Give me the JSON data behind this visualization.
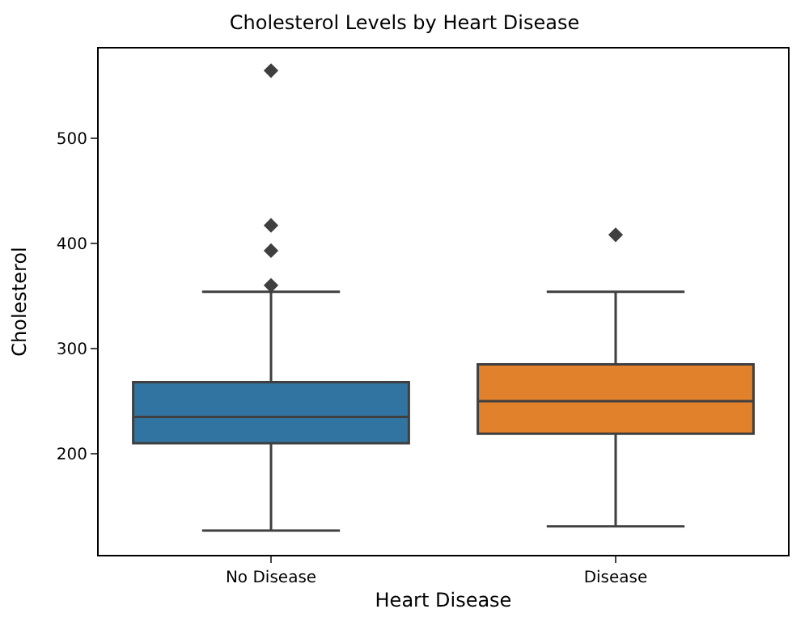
{
  "chart_data": {
    "type": "box",
    "title": "Cholesterol Levels by Heart Disease",
    "xlabel": "Heart Disease",
    "ylabel": "Cholesterol",
    "categories": [
      "No Disease",
      "Disease"
    ],
    "boxes": [
      {
        "low": 127,
        "q1": 210,
        "median": 235,
        "q3": 268,
        "high": 354,
        "outliers": [
          564,
          417,
          393,
          360
        ]
      },
      {
        "low": 131,
        "q1": 219,
        "median": 250,
        "q3": 285,
        "high": 354,
        "outliers": [
          408
        ]
      }
    ],
    "colors": [
      "#3274a1",
      "#e1812c"
    ],
    "ylim": [
      104,
      585
    ],
    "yticks": [
      200,
      300,
      400,
      500
    ],
    "marker": "diamond"
  }
}
